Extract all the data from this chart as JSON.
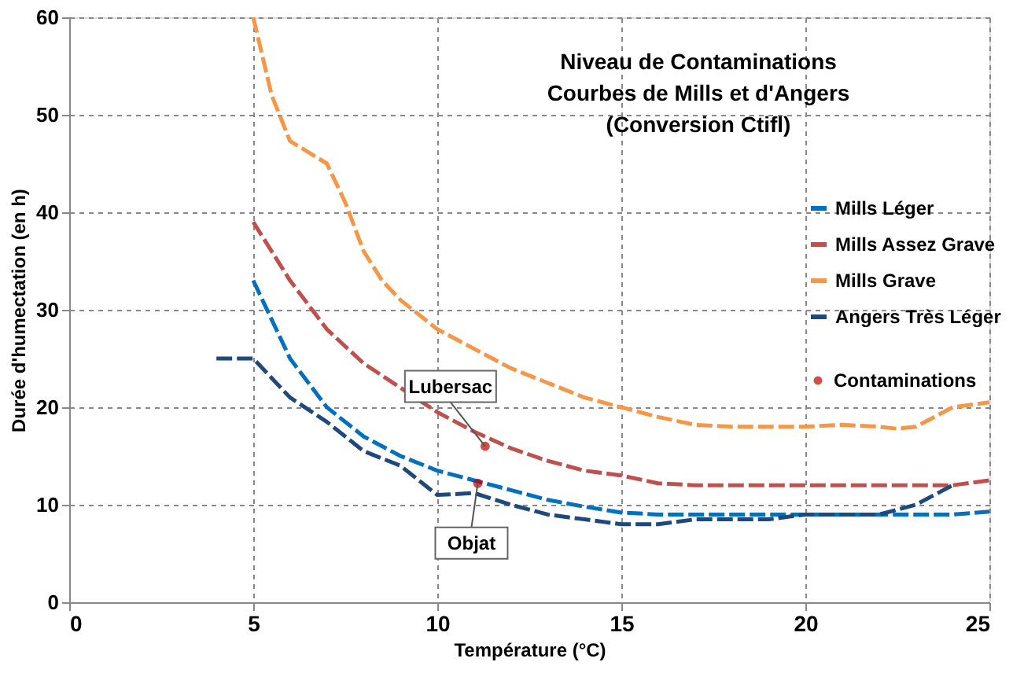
{
  "chart_data": {
    "type": "line",
    "title": "Niveau de Contaminations\nCourbes de Mills et d'Angers\n(Conversion Ctifl)",
    "xlabel": "Température (°C)",
    "ylabel": "Durée d'humectation (en h)",
    "xlim": [
      0,
      25
    ],
    "xticks": [
      0,
      5,
      10,
      15,
      20,
      25
    ],
    "ylim": [
      0,
      60
    ],
    "yticks": [
      0,
      10,
      20,
      30,
      40,
      50,
      60
    ],
    "grid": true,
    "legend": "right",
    "line_style": "dashed",
    "series": [
      {
        "name": "Mills Léger",
        "color": "#0070c0",
        "x": [
          5,
          6,
          7,
          8,
          9,
          10,
          11,
          12,
          13,
          14,
          15,
          16,
          17,
          18,
          19,
          20,
          21,
          22,
          23,
          24,
          25
        ],
        "values": [
          33,
          25,
          20,
          17,
          15,
          13.5,
          12.5,
          11.5,
          10.5,
          9.8,
          9.2,
          9,
          9,
          9,
          9,
          9,
          9,
          9,
          9,
          9,
          9.3
        ]
      },
      {
        "name": "Mills Assez Grave",
        "color": "#c0504d",
        "x": [
          5,
          6,
          7,
          8,
          9,
          10,
          11,
          12,
          13,
          14,
          15,
          16,
          17,
          18,
          19,
          20,
          21,
          22,
          23,
          24,
          25
        ],
        "values": [
          39,
          33,
          28,
          24.5,
          22,
          19.5,
          17.5,
          15.8,
          14.5,
          13.5,
          13,
          12.2,
          12,
          12,
          12,
          12,
          12,
          12,
          12,
          12,
          12.5
        ]
      },
      {
        "name": "Mills Grave",
        "color": "#f79646",
        "x": [
          5,
          5.5,
          6,
          7,
          7.5,
          8,
          8.5,
          9,
          10,
          11,
          12,
          13,
          14,
          15,
          16,
          17,
          18,
          19,
          20,
          21,
          22,
          22.5,
          23,
          24,
          25
        ],
        "values": [
          60,
          52,
          47.3,
          45,
          41,
          36,
          33,
          31,
          28,
          26,
          24,
          22.5,
          21,
          20,
          19,
          18.2,
          18,
          18,
          18,
          18.2,
          18,
          17.8,
          18,
          20,
          20.5
        ]
      },
      {
        "name": "Angers Très Léger",
        "color": "#1f497d",
        "x": [
          4,
          5,
          6,
          7,
          8,
          9,
          10,
          11,
          12,
          13,
          14,
          15,
          16,
          17,
          18,
          19,
          20,
          21,
          22,
          23,
          24
        ],
        "values": [
          25,
          25,
          21,
          18.5,
          15.5,
          14,
          11,
          11.2,
          10,
          9,
          8.5,
          8,
          8,
          8.5,
          8.5,
          8.5,
          9,
          9,
          9,
          10,
          12
        ]
      },
      {
        "name": "Contaminations",
        "type": "scatter",
        "marker": "circle",
        "color": "#c00000",
        "x": [
          11.3,
          11.1
        ],
        "values": [
          16,
          12.2
        ]
      }
    ],
    "annotations": [
      {
        "text": "Lubersac",
        "x": 11.3,
        "y": 16
      },
      {
        "text": "Objat",
        "x": 11.1,
        "y": 12.2
      }
    ]
  }
}
